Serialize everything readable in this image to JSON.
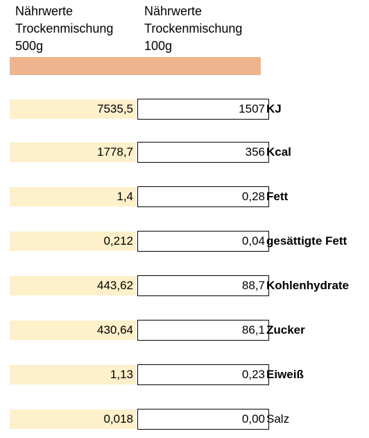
{
  "headers": {
    "col_500": {
      "line1": "Nährwerte",
      "line2": "Trockenmischung",
      "line3": "500g"
    },
    "col_100": {
      "line1": "Nährwerte",
      "line2": "Trockenmischung",
      "line3": "100g"
    }
  },
  "colors": {
    "header_bar": "#edb58d",
    "value_500_fill": "#fdf0cb",
    "value_100_fill": "#ffffff"
  },
  "rows": [
    {
      "value_500": "7535,5",
      "value_100": "1507",
      "label": "KJ"
    },
    {
      "value_500": "1778,7",
      "value_100": "356",
      "label": "Kcal"
    },
    {
      "value_500": "1,4",
      "value_100": "0,28",
      "label": "Fett"
    },
    {
      "value_500": "0,212",
      "value_100": "0,04",
      "label": "gesättigte Fett"
    },
    {
      "value_500": "443,62",
      "value_100": "88,7",
      "label": "Kohlenhydrate"
    },
    {
      "value_500": "430,64",
      "value_100": "86,1",
      "label": "Zucker"
    },
    {
      "value_500": "1,13",
      "value_100": "0,23",
      "label": "Eiweiß"
    },
    {
      "value_500": "0,018",
      "value_100": "0,00",
      "label": "Salz"
    }
  ]
}
